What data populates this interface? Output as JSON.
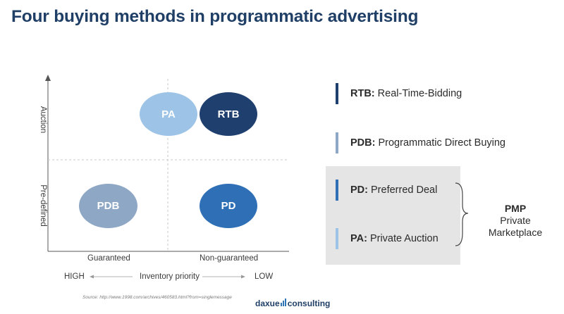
{
  "title": "Four buying methods in programmatic advertising",
  "matrix": {
    "y_labels": {
      "top": "Auction",
      "bottom": "Pre-defined"
    },
    "x_labels": {
      "left": "Guaranteed",
      "right": "Non-guaranteed"
    },
    "priority": {
      "high": "HIGH",
      "label": "Inventory priority",
      "low": "LOW"
    },
    "bubbles": [
      {
        "id": "pa",
        "label": "PA",
        "color": "#9dc3e6"
      },
      {
        "id": "rtb",
        "label": "RTB",
        "color": "#1f3f6e"
      },
      {
        "id": "pdb",
        "label": "PDB",
        "color": "#8ea7c4"
      },
      {
        "id": "pd",
        "label": "PD",
        "color": "#2e6fb6"
      }
    ]
  },
  "legend": [
    {
      "abbr": "RTB:",
      "text": "Real-Time-Bidding",
      "color": "#1f3f6e"
    },
    {
      "abbr": "PDB:",
      "text": "Programmatic Direct Buying",
      "color": "#8ea7c4"
    },
    {
      "abbr": "PD:",
      "text": "Preferred Deal",
      "color": "#2e6fb6"
    },
    {
      "abbr": "PA:",
      "text": "Private Auction",
      "color": "#9dc3e6"
    }
  ],
  "pmp": {
    "abbr": "PMP",
    "line1": "Private",
    "line2": "Marketplace"
  },
  "footer": {
    "source": "Source: http://www.1998.com/archives/460583.html?from=singlemessage",
    "logo_part1": "daxue",
    "logo_part2": "consulting"
  }
}
